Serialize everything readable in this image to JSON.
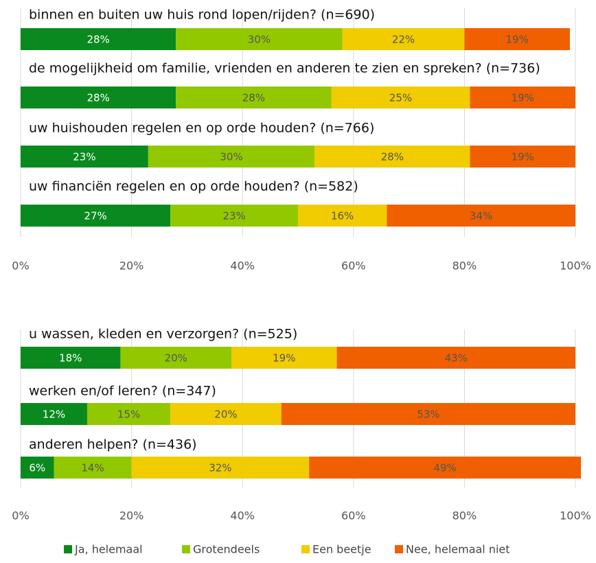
{
  "chart_data": [
    {
      "type": "stacked-bar-horizontal",
      "categories": [
        "binnen en buiten uw huis rond lopen/rijden? (n=690)",
        "de mogelijkheid om familie, vrienden en anderen te zien en spreken? (n=736)",
        "uw huishouden regelen en op orde houden? (n=766)",
        "uw financiën regelen en op orde houden? (n=582)"
      ],
      "series": [
        {
          "name": "Ja, helemaal",
          "color": "#0a8a1e",
          "values": [
            28,
            28,
            23,
            27
          ],
          "value_labels": [
            "28%",
            "28%",
            "23%",
            "27%"
          ]
        },
        {
          "name": "Grotendeels",
          "color": "#92c800",
          "values": [
            30,
            28,
            30,
            23
          ],
          "value_labels": [
            "30%",
            "28%",
            "30%",
            "23%"
          ]
        },
        {
          "name": "Een beetje",
          "color": "#f0cc00",
          "values": [
            22,
            25,
            28,
            16
          ],
          "value_labels": [
            "22%",
            "25%",
            "28%",
            "16%"
          ]
        },
        {
          "name": "Nee, helemaal niet",
          "color": "#f06000",
          "values": [
            19,
            19,
            19,
            34
          ],
          "value_labels": [
            "19%",
            "19%",
            "19%",
            "34%"
          ]
        }
      ],
      "xlim": [
        0,
        100
      ],
      "xticks": [
        {
          "value": 0,
          "label": "0%"
        },
        {
          "value": 20,
          "label": "20%"
        },
        {
          "value": 40,
          "label": "40%"
        },
        {
          "value": 60,
          "label": "60%"
        },
        {
          "value": 80,
          "label": "80%"
        },
        {
          "value": 100,
          "label": "100%"
        }
      ],
      "grid": true
    },
    {
      "type": "stacked-bar-horizontal",
      "categories": [
        "u wassen, kleden en verzorgen? (n=525)",
        "werken en/of leren? (n=347)",
        "anderen helpen? (n=436)"
      ],
      "series": [
        {
          "color": "#0a8a1e",
          "values": [
            18,
            12,
            6
          ],
          "value_labels": [
            "18%",
            "12%",
            "6%"
          ]
        },
        {
          "color": "#92c800",
          "values": [
            20,
            15,
            14
          ],
          "value_labels": [
            "20%",
            "15%",
            "14%"
          ]
        },
        {
          "color": "#f0cc00",
          "values": [
            19,
            20,
            32
          ],
          "value_labels": [
            "19%",
            "20%",
            "32%"
          ]
        },
        {
          "color": "#f06000",
          "values": [
            43,
            53,
            49
          ],
          "value_labels": [
            "43%",
            "53%",
            "49%"
          ]
        }
      ],
      "xlim": [
        0,
        100
      ],
      "xticks": [
        {
          "value": 0,
          "label": "0%"
        },
        {
          "value": 20,
          "label": "20%"
        },
        {
          "value": 40,
          "label": "40%"
        },
        {
          "value": 60,
          "label": "60%"
        },
        {
          "value": 80,
          "label": "80%"
        },
        {
          "value": 100,
          "label": "100%"
        }
      ],
      "grid": true
    }
  ]
}
